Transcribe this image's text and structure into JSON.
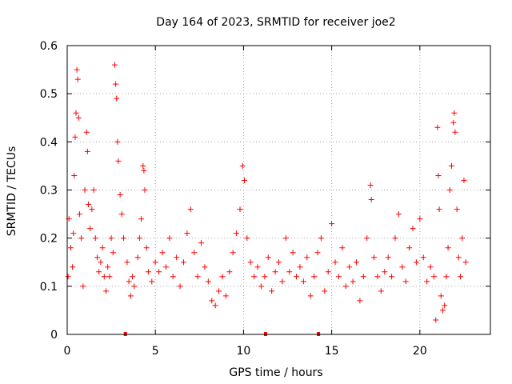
{
  "chart_data": {
    "type": "scatter",
    "title": "Day 164 of 2023, SRMTID for receiver joe2",
    "xlabel": "GPS time / hours",
    "ylabel": "SRMTID / TECUs",
    "xlim": [
      0,
      24
    ],
    "ylim": [
      0,
      0.6
    ],
    "x_ticks": [
      0,
      5,
      10,
      15,
      20
    ],
    "x_tick_labels": [
      "0",
      "5",
      "10",
      "15",
      "20"
    ],
    "y_ticks": [
      0,
      0.1,
      0.2,
      0.3,
      0.4,
      0.5,
      0.6
    ],
    "y_tick_labels": [
      "0",
      "0.1",
      "0.2",
      "0.3",
      "0.4",
      "0.5",
      "0.6"
    ],
    "grid": true,
    "marker": "+",
    "series": [
      {
        "name": "SRMTID",
        "color": "#ff0000",
        "points": [
          [
            0.05,
            0.12
          ],
          [
            0.1,
            0.24
          ],
          [
            0.2,
            0.18
          ],
          [
            0.3,
            0.14
          ],
          [
            0.35,
            0.21
          ],
          [
            0.4,
            0.33
          ],
          [
            0.45,
            0.41
          ],
          [
            0.5,
            0.46
          ],
          [
            0.55,
            0.55
          ],
          [
            0.6,
            0.53
          ],
          [
            0.65,
            0.45
          ],
          [
            0.7,
            0.25
          ],
          [
            0.8,
            0.2
          ],
          [
            0.9,
            0.1
          ],
          [
            1.0,
            0.3
          ],
          [
            1.1,
            0.42
          ],
          [
            1.15,
            0.38
          ],
          [
            1.2,
            0.27
          ],
          [
            1.3,
            0.22
          ],
          [
            1.4,
            0.26
          ],
          [
            1.5,
            0.3
          ],
          [
            1.6,
            0.2
          ],
          [
            1.7,
            0.16
          ],
          [
            1.8,
            0.13
          ],
          [
            1.9,
            0.15
          ],
          [
            2.0,
            0.18
          ],
          [
            2.1,
            0.12
          ],
          [
            2.2,
            0.09
          ],
          [
            2.3,
            0.14
          ],
          [
            2.4,
            0.12
          ],
          [
            2.5,
            0.2
          ],
          [
            2.6,
            0.17
          ],
          [
            2.7,
            0.56
          ],
          [
            2.75,
            0.52
          ],
          [
            2.8,
            0.49
          ],
          [
            2.85,
            0.4
          ],
          [
            2.9,
            0.36
          ],
          [
            3.0,
            0.29
          ],
          [
            3.1,
            0.25
          ],
          [
            3.2,
            0.2
          ],
          [
            3.4,
            0.15
          ],
          [
            3.5,
            0.11
          ],
          [
            3.6,
            0.08
          ],
          [
            3.7,
            0.12
          ],
          [
            3.8,
            0.1
          ],
          [
            4.0,
            0.16
          ],
          [
            4.1,
            0.2
          ],
          [
            4.2,
            0.24
          ],
          [
            4.3,
            0.35
          ],
          [
            4.35,
            0.34
          ],
          [
            4.4,
            0.3
          ],
          [
            4.5,
            0.18
          ],
          [
            4.6,
            0.13
          ],
          [
            4.8,
            0.11
          ],
          [
            5.0,
            0.15
          ],
          [
            5.2,
            0.13
          ],
          [
            5.4,
            0.17
          ],
          [
            5.6,
            0.14
          ],
          [
            5.8,
            0.2
          ],
          [
            6.0,
            0.12
          ],
          [
            6.2,
            0.16
          ],
          [
            6.4,
            0.1
          ],
          [
            6.6,
            0.15
          ],
          [
            6.8,
            0.21
          ],
          [
            7.0,
            0.26
          ],
          [
            7.2,
            0.17
          ],
          [
            7.4,
            0.12
          ],
          [
            7.6,
            0.19
          ],
          [
            7.8,
            0.14
          ],
          [
            8.0,
            0.11
          ],
          [
            8.2,
            0.07
          ],
          [
            8.4,
            0.06
          ],
          [
            8.6,
            0.09
          ],
          [
            8.8,
            0.12
          ],
          [
            9.0,
            0.08
          ],
          [
            9.2,
            0.13
          ],
          [
            9.4,
            0.17
          ],
          [
            9.6,
            0.21
          ],
          [
            9.8,
            0.26
          ],
          [
            9.95,
            0.35
          ],
          [
            10.05,
            0.32
          ],
          [
            10.2,
            0.2
          ],
          [
            10.4,
            0.15
          ],
          [
            10.6,
            0.12
          ],
          [
            10.8,
            0.14
          ],
          [
            11.0,
            0.1
          ],
          [
            11.2,
            0.12
          ],
          [
            11.4,
            0.16
          ],
          [
            11.6,
            0.09
          ],
          [
            11.8,
            0.13
          ],
          [
            12.0,
            0.15
          ],
          [
            12.2,
            0.11
          ],
          [
            12.4,
            0.2
          ],
          [
            12.6,
            0.13
          ],
          [
            12.8,
            0.17
          ],
          [
            13.0,
            0.12
          ],
          [
            13.2,
            0.14
          ],
          [
            13.4,
            0.11
          ],
          [
            13.6,
            0.16
          ],
          [
            13.8,
            0.08
          ],
          [
            14.0,
            0.12
          ],
          [
            14.2,
            0.17
          ],
          [
            14.4,
            0.2
          ],
          [
            14.6,
            0.09
          ],
          [
            14.8,
            0.13
          ],
          [
            15.0,
            0.23
          ],
          [
            15.2,
            0.15
          ],
          [
            15.4,
            0.12
          ],
          [
            15.6,
            0.18
          ],
          [
            15.8,
            0.1
          ],
          [
            16.0,
            0.14
          ],
          [
            16.2,
            0.11
          ],
          [
            16.4,
            0.15
          ],
          [
            16.6,
            0.07
          ],
          [
            16.8,
            0.12
          ],
          [
            17.0,
            0.2
          ],
          [
            17.2,
            0.31
          ],
          [
            17.25,
            0.28
          ],
          [
            17.4,
            0.16
          ],
          [
            17.6,
            0.12
          ],
          [
            17.8,
            0.09
          ],
          [
            18.0,
            0.13
          ],
          [
            18.2,
            0.16
          ],
          [
            18.4,
            0.12
          ],
          [
            18.6,
            0.2
          ],
          [
            18.8,
            0.25
          ],
          [
            19.0,
            0.14
          ],
          [
            19.2,
            0.11
          ],
          [
            19.4,
            0.18
          ],
          [
            19.6,
            0.22
          ],
          [
            19.8,
            0.15
          ],
          [
            20.0,
            0.24
          ],
          [
            20.2,
            0.16
          ],
          [
            20.4,
            0.11
          ],
          [
            20.6,
            0.14
          ],
          [
            20.8,
            0.12
          ],
          [
            20.9,
            0.03
          ],
          [
            21.0,
            0.43
          ],
          [
            21.05,
            0.33
          ],
          [
            21.1,
            0.26
          ],
          [
            21.2,
            0.08
          ],
          [
            21.3,
            0.05
          ],
          [
            21.4,
            0.06
          ],
          [
            21.5,
            0.12
          ],
          [
            21.6,
            0.18
          ],
          [
            21.7,
            0.3
          ],
          [
            21.8,
            0.35
          ],
          [
            21.9,
            0.44
          ],
          [
            21.95,
            0.46
          ],
          [
            22.0,
            0.42
          ],
          [
            22.1,
            0.26
          ],
          [
            22.2,
            0.16
          ],
          [
            22.3,
            0.12
          ],
          [
            22.4,
            0.2
          ],
          [
            22.5,
            0.32
          ],
          [
            22.6,
            0.15
          ]
        ]
      }
    ],
    "zero_markers_x": [
      3.3,
      11.25,
      14.25
    ]
  }
}
